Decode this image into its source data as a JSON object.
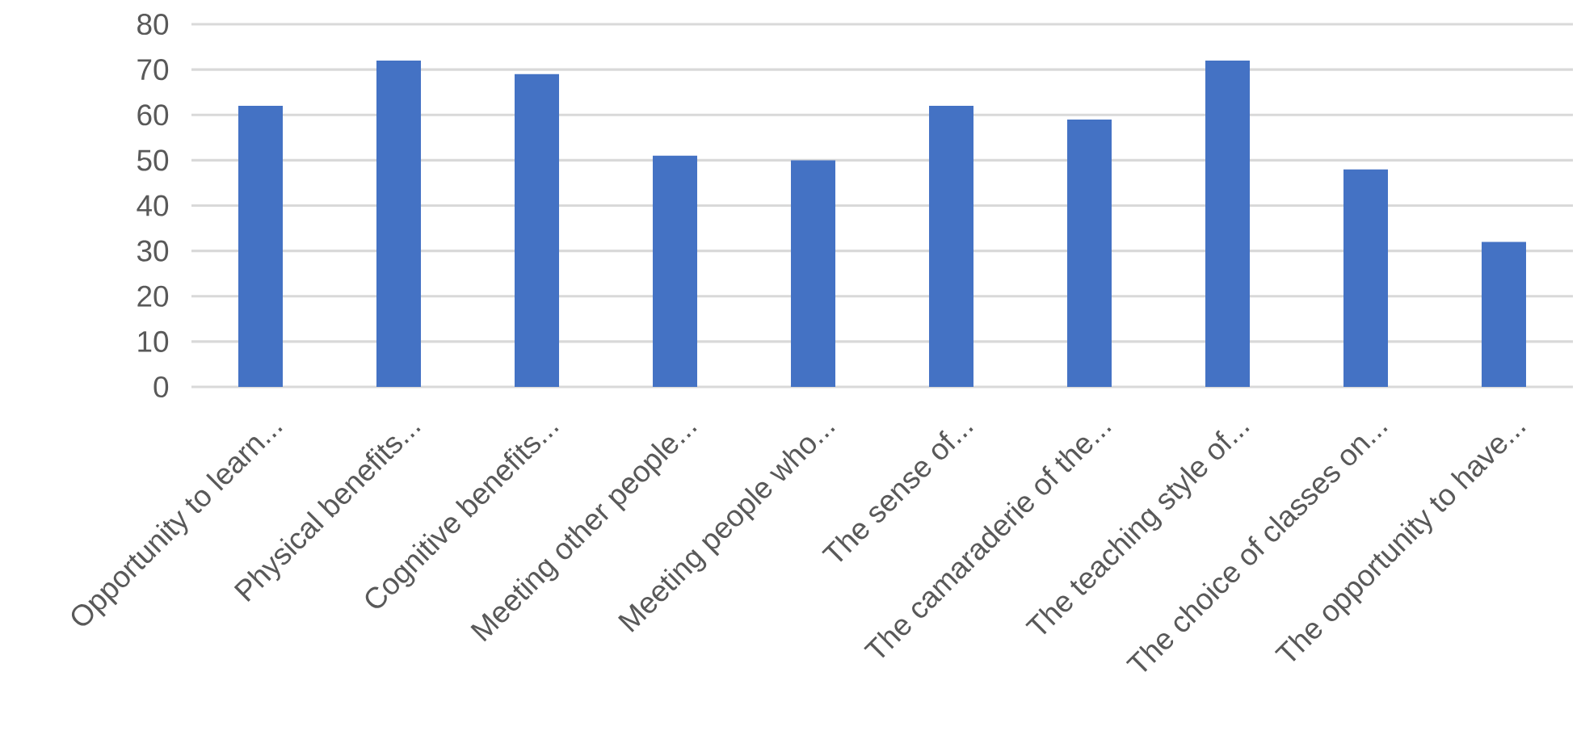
{
  "chart_data": {
    "type": "bar",
    "categories": [
      "Opportunity to learn...",
      "Physical benefits...",
      "Cognitive benefits...",
      "Meeting other people...",
      "Meeting people who...",
      "The sense of...",
      "The camaraderie of the...",
      "The teaching style of...",
      "The choice of classes on...",
      "The opportunity to have..."
    ],
    "values": [
      62,
      72,
      69,
      51,
      50,
      62,
      59,
      72,
      48,
      32
    ],
    "color": "#4472c4",
    "ylim": [
      0,
      80
    ],
    "yticks": [
      0,
      10,
      20,
      30,
      40,
      50,
      60,
      70,
      80
    ],
    "grid": "y"
  }
}
